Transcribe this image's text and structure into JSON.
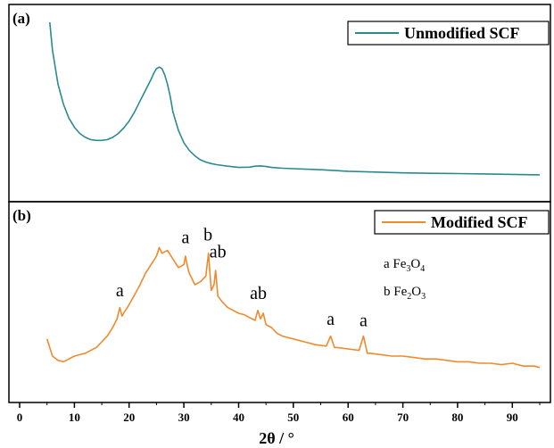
{
  "chart_data": [
    {
      "panel": "(a)",
      "type": "line",
      "legend": "Unmodified SCF",
      "color": "#2a8b8f",
      "xlim": [
        0,
        95
      ],
      "ylim": [
        0,
        1
      ],
      "x": [
        5.5,
        6,
        7,
        8,
        9,
        10,
        11,
        12,
        13,
        14,
        15,
        16,
        17,
        18,
        19,
        20,
        21,
        22,
        23,
        24,
        24.5,
        25,
        25.5,
        26,
        26.5,
        27,
        27.5,
        28,
        29,
        30,
        31,
        32,
        33,
        34,
        35,
        36,
        38,
        40,
        42,
        43,
        44,
        45,
        46,
        48,
        50,
        55,
        60,
        65,
        70,
        75,
        80,
        85,
        90,
        95
      ],
      "y": [
        1.0,
        0.82,
        0.6,
        0.47,
        0.38,
        0.32,
        0.28,
        0.255,
        0.24,
        0.235,
        0.235,
        0.24,
        0.255,
        0.28,
        0.315,
        0.36,
        0.42,
        0.49,
        0.56,
        0.63,
        0.67,
        0.7,
        0.71,
        0.7,
        0.66,
        0.6,
        0.52,
        0.42,
        0.3,
        0.22,
        0.17,
        0.135,
        0.11,
        0.095,
        0.085,
        0.078,
        0.068,
        0.06,
        0.062,
        0.068,
        0.07,
        0.066,
        0.06,
        0.055,
        0.052,
        0.045,
        0.035,
        0.03,
        0.025,
        0.022,
        0.02,
        0.018,
        0.015,
        0.012
      ]
    },
    {
      "panel": "(b)",
      "type": "line",
      "legend": "Modified SCF",
      "color": "#ef8a2e",
      "xlim": [
        0,
        95
      ],
      "ylim": [
        0,
        1
      ],
      "x": [
        5,
        6,
        7,
        8,
        9,
        10,
        11,
        12,
        13,
        14,
        15,
        16,
        17,
        17.8,
        18.3,
        18.7,
        19,
        20,
        21,
        22,
        23,
        24,
        25,
        25.5,
        26,
        27,
        28,
        29,
        30,
        30.3,
        30.7,
        31,
        32,
        33,
        34,
        34.5,
        35,
        35.5,
        35.8,
        36.2,
        37,
        38,
        39,
        40,
        41,
        42,
        43,
        43.5,
        44,
        44.5,
        45,
        46,
        47,
        48,
        50,
        52,
        54,
        56,
        56.8,
        57.5,
        58,
        60,
        62,
        62.8,
        63.5,
        64,
        66,
        68,
        70,
        72,
        74,
        76,
        78,
        80,
        82,
        84,
        86,
        88,
        90,
        92,
        94,
        95
      ],
      "y": [
        0.22,
        0.1,
        0.07,
        0.06,
        0.08,
        0.1,
        0.11,
        0.12,
        0.14,
        0.16,
        0.2,
        0.24,
        0.3,
        0.36,
        0.44,
        0.38,
        0.4,
        0.46,
        0.53,
        0.6,
        0.68,
        0.74,
        0.8,
        0.86,
        0.82,
        0.84,
        0.78,
        0.72,
        0.74,
        0.8,
        0.72,
        0.68,
        0.6,
        0.62,
        0.66,
        0.82,
        0.56,
        0.6,
        0.7,
        0.52,
        0.48,
        0.44,
        0.42,
        0.4,
        0.39,
        0.37,
        0.35,
        0.42,
        0.36,
        0.4,
        0.32,
        0.3,
        0.26,
        0.24,
        0.22,
        0.2,
        0.18,
        0.17,
        0.24,
        0.16,
        0.16,
        0.15,
        0.14,
        0.24,
        0.12,
        0.12,
        0.11,
        0.1,
        0.1,
        0.09,
        0.08,
        0.08,
        0.07,
        0.06,
        0.06,
        0.05,
        0.05,
        0.04,
        0.05,
        0.03,
        0.03,
        0.02
      ]
    }
  ],
  "peak_labels": [
    {
      "text": "a",
      "x": 18.3,
      "y": 0.52
    },
    {
      "text": "a",
      "x": 30.3,
      "y": 0.89
    },
    {
      "text": "b",
      "x": 34.4,
      "y": 0.91
    },
    {
      "text": "ab",
      "x": 36.2,
      "y": 0.79
    },
    {
      "text": "ab",
      "x": 43.6,
      "y": 0.5
    },
    {
      "text": "a",
      "x": 56.8,
      "y": 0.32
    },
    {
      "text": "a",
      "x": 62.8,
      "y": 0.31
    }
  ],
  "phase_key": {
    "line1": {
      "prefix": "a Fe",
      "sub1": "3",
      "mid": "O",
      "sub2": "4"
    },
    "line2": {
      "prefix": "b Fe",
      "sub1": "2",
      "mid": "O",
      "sub2": "3"
    }
  },
  "x_axis": {
    "ticks": [
      0,
      10,
      20,
      30,
      40,
      50,
      60,
      70,
      80,
      90
    ],
    "title": "2θ / °"
  }
}
